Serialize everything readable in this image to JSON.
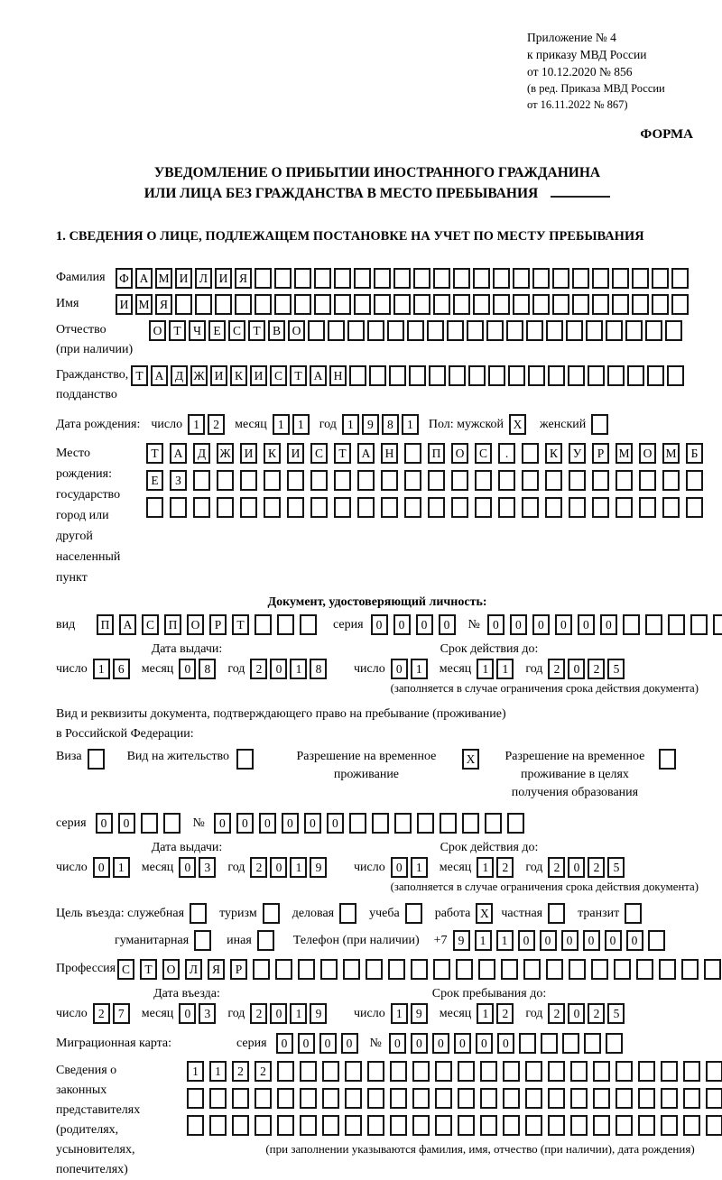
{
  "labels": {
    "chislo": "число",
    "mesyac": "месяц",
    "god": "год",
    "seriya": "серия",
    "num": "№",
    "vid": "вид"
  },
  "header": {
    "line1": "Приложение № 4",
    "line2": "к приказу МВД России",
    "line3": "от 10.12.2020 № 856",
    "line4": "(в ред. Приказа МВД России",
    "line5": "от 16.11.2022 № 867)",
    "form_label": "ФОРМА"
  },
  "title": {
    "line1": "УВЕДОМЛЕНИЕ О ПРИБЫТИИ ИНОСТРАННОГО ГРАЖДАНИНА",
    "line2": "ИЛИ ЛИЦА БЕЗ ГРАЖДАНСТВА В МЕСТО ПРЕБЫВАНИЯ"
  },
  "section1_heading": "1. СВЕДЕНИЯ О ЛИЦЕ, ПОДЛЕЖАЩЕМ ПОСТАНОВКЕ НА УЧЕТ ПО МЕСТУ ПРЕБЫВАНИЯ",
  "surname": {
    "label": "Фамилия",
    "boxes": {
      "value": "ФАМИЛИЯ",
      "count": 29
    }
  },
  "firstname": {
    "label": "Имя",
    "boxes": {
      "value": "ИМЯ",
      "count": 29
    }
  },
  "patronymic": {
    "label1": "Отчество",
    "label2": "(при наличии)",
    "boxes": {
      "value": "ОТЧЕСТВО",
      "count": 27
    }
  },
  "citizenship": {
    "label1": "Гражданство,",
    "label2": "подданство",
    "boxes": {
      "value": "ТАДЖИКИСТАН",
      "count": 28
    }
  },
  "birth": {
    "label": "Дата рождения:",
    "day": {
      "value": "12",
      "count": 2
    },
    "month": {
      "value": "11",
      "count": 2
    },
    "year": {
      "value": "1981",
      "count": 4
    },
    "male_label": "Пол: мужской",
    "male": {
      "value": "X",
      "count": 1
    },
    "female_label": "женский",
    "female": {
      "value": "",
      "count": 1
    }
  },
  "birthplace": {
    "label1": "Место рождения:",
    "label2": "государство",
    "label3": "город или другой",
    "label4": "населенный пункт",
    "row1": {
      "value": "ТАДЖИКИСТАН ПОС. КУРМОМБ",
      "count": 24
    },
    "row2": {
      "value": "ЕЗ",
      "count": 24
    },
    "row3": {
      "value": "",
      "count": 24
    }
  },
  "identity_doc": {
    "heading": "Документ, удостоверяющий личность:",
    "type": {
      "value": "ПАСПОРТ",
      "count": 10
    },
    "seriya": {
      "value": "0000",
      "count": 4
    },
    "number": {
      "value": "000000",
      "count": 11
    },
    "issue_heading": "Дата выдачи:",
    "issue_day": {
      "value": "16",
      "count": 2
    },
    "issue_month": {
      "value": "08",
      "count": 2
    },
    "issue_year": {
      "value": "2018",
      "count": 4
    },
    "expiry_heading": "Срок действия до:",
    "expiry_day": {
      "value": "01",
      "count": 2
    },
    "expiry_month": {
      "value": "11",
      "count": 2
    },
    "expiry_year": {
      "value": "2025",
      "count": 4
    },
    "note": "(заполняется в случае ограничения срока действия документа)"
  },
  "residence_doc": {
    "intro1": "Вид и реквизиты документа, подтверждающего право на пребывание (проживание)",
    "intro2": "в Российской Федерации:",
    "opt_visa": {
      "label": "Виза",
      "box": {
        "value": "",
        "count": 1
      }
    },
    "opt_vnj": {
      "label": "Вид на жительство",
      "box": {
        "value": "",
        "count": 1
      }
    },
    "opt_rvp": {
      "label": "Разрешение на временное проживание",
      "box": {
        "value": "X",
        "count": 1
      }
    },
    "opt_rvpo": {
      "label": "Разрешение на временное проживание в целях получения образования",
      "box": {
        "value": "",
        "count": 1
      }
    },
    "seriya": {
      "value": "00",
      "count": 4
    },
    "number": {
      "value": "000000",
      "count": 14
    },
    "issue_heading": "Дата выдачи:",
    "issue_day": {
      "value": "01",
      "count": 2
    },
    "issue_month": {
      "value": "03",
      "count": 2
    },
    "issue_year": {
      "value": "2019",
      "count": 4
    },
    "expiry_heading": "Срок действия до:",
    "expiry_day": {
      "value": "01",
      "count": 2
    },
    "expiry_month": {
      "value": "12",
      "count": 2
    },
    "expiry_year": {
      "value": "2025",
      "count": 4
    },
    "note": "(заполняется в случае ограничения срока действия документа)"
  },
  "purpose": {
    "prefix": "Цель въезда: служебная",
    "opt1": {
      "label": "туризм",
      "box": {
        "value": "",
        "count": 1
      }
    },
    "opt0box": {
      "value": "",
      "count": 1
    },
    "opt2": {
      "label": "деловая",
      "box": {
        "value": "",
        "count": 1
      }
    },
    "opt3": {
      "label": "учеба",
      "box": {
        "value": "",
        "count": 1
      }
    },
    "opt4": {
      "label": "работа",
      "box": {
        "value": "X",
        "count": 1
      }
    },
    "opt5": {
      "label": "частная",
      "box": {
        "value": "",
        "count": 1
      }
    },
    "opt6": {
      "label": "транзит",
      "box": {
        "value": "",
        "count": 1
      }
    },
    "opt7": {
      "label": "гуманитарная",
      "box": {
        "value": "",
        "count": 1
      }
    },
    "opt8": {
      "label": "иная",
      "box": {
        "value": "",
        "count": 1
      }
    },
    "phone_label": "Телефон (при наличии)",
    "phone_prefix": "+7",
    "phone": {
      "value": "911000000",
      "count": 10
    }
  },
  "profession": {
    "label": "Профессия",
    "boxes": {
      "value": "СТОЛЯР",
      "count": 27
    }
  },
  "entry": {
    "issue_heading": "Дата въезда:",
    "entry_day": {
      "value": "27",
      "count": 2
    },
    "entry_month": {
      "value": "03",
      "count": 2
    },
    "entry_year": {
      "value": "2019",
      "count": 4
    },
    "until_heading": "Срок пребывания до:",
    "until_day": {
      "value": "19",
      "count": 2
    },
    "until_month": {
      "value": "12",
      "count": 2
    },
    "until_year": {
      "value": "2025",
      "count": 4
    }
  },
  "migration_card": {
    "label": "Миграционная карта:",
    "seriya": {
      "value": "0000",
      "count": 4
    },
    "number": {
      "value": "000000",
      "count": 11
    }
  },
  "legal_reps": {
    "label_lines": [
      "Сведения о",
      "законных",
      "представителях",
      "(родителях,",
      "усыновителях,",
      "попечителях)"
    ],
    "row1": {
      "value": "1122",
      "count": 26
    },
    "row2": {
      "value": "",
      "count": 26
    },
    "row3": {
      "value": "",
      "count": 26
    },
    "note": "(при заполнении указываются фамилия, имя, отчество (при наличии), дата рождения)"
  }
}
